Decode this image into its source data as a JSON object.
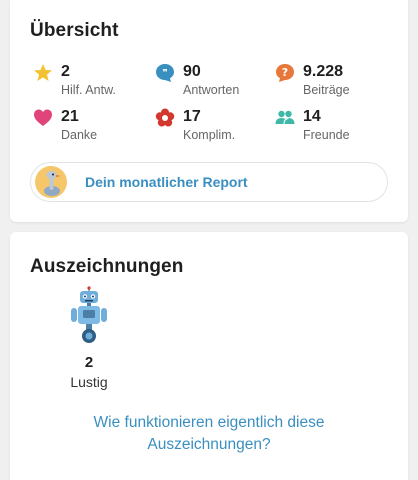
{
  "overview": {
    "title": "Übersicht",
    "stats": [
      {
        "value": "2",
        "label": "Hilf. Antw.",
        "icon": "star-icon",
        "color": "#f2c230"
      },
      {
        "value": "90",
        "label": "Antworten",
        "icon": "speech-bubble-icon",
        "color": "#3a8fc1"
      },
      {
        "value": "9.228",
        "label": "Beiträge",
        "icon": "question-bubble-icon",
        "color": "#e8783a"
      },
      {
        "value": "21",
        "label": "Danke",
        "icon": "heart-icon",
        "color": "#e0447a"
      },
      {
        "value": "17",
        "label": "Komplim.",
        "icon": "flower-icon",
        "color": "#d2382e"
      },
      {
        "value": "14",
        "label": "Freunde",
        "icon": "friends-icon",
        "color": "#3fb8a8"
      }
    ],
    "report_label": "Dein monatlicher Report"
  },
  "awards": {
    "title": "Auszeichnungen",
    "items": [
      {
        "count": "2",
        "name": "Lustig",
        "icon": "robot-icon"
      }
    ],
    "help_link": "Wie funktionieren eigentlich diese Auszeichnungen?"
  }
}
